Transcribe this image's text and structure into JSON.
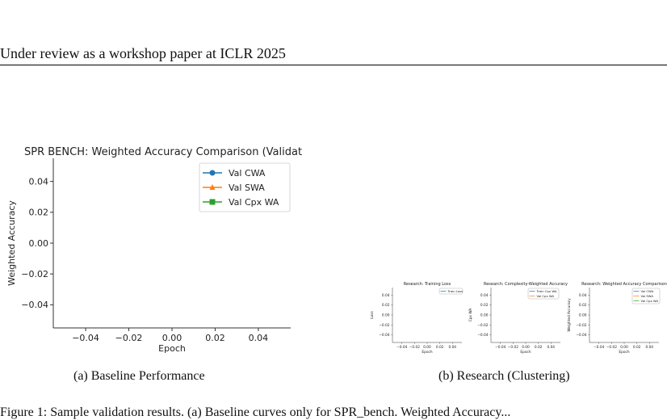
{
  "header": {
    "text": "Under review as a workshop paper at ICLR 2025"
  },
  "captions": {
    "a": "(a) Baseline Performance",
    "b": "(b) Research (Clustering)",
    "figure": "Figure 1: Sample validation results. (a) Baseline curves only for SPR_bench. Weighted Accuracy..."
  },
  "chart_data": [
    {
      "type": "line",
      "title": "SPR BENCH: Weighted Accuracy Comparison (Validat",
      "xlabel": "Epoch",
      "ylabel": "Weighted Accuracy",
      "xlim": [
        -0.055,
        0.055
      ],
      "ylim": [
        -0.055,
        0.055
      ],
      "xticks": [
        "−0.04",
        "−0.02",
        "0.00",
        "0.02",
        "0.04"
      ],
      "yticks": [
        "0.04",
        "0.02",
        "0.00",
        "−0.02",
        "−0.04"
      ],
      "legend_position": "upper right",
      "series": [
        {
          "name": "Val CWA",
          "values": [],
          "color": "#1f77b4",
          "marker": "circle"
        },
        {
          "name": "Val SWA",
          "values": [],
          "color": "#ff7f0e",
          "marker": "triangle"
        },
        {
          "name": "Val Cpx WA",
          "values": [],
          "color": "#2ca02c",
          "marker": "square"
        }
      ]
    },
    {
      "type": "line",
      "title": "Research: Training Loss",
      "xlabel": "Epoch",
      "ylabel": "Loss",
      "xticks": [
        "−0.04",
        "−0.02",
        "0.00",
        "0.02",
        "0.04"
      ],
      "yticks": [
        "0.04",
        "0.02",
        "0.00",
        "−0.02",
        "−0.04"
      ],
      "series": [
        {
          "name": "Train Loss",
          "values": [],
          "color": "#1f77b4"
        }
      ]
    },
    {
      "type": "line",
      "title": "Research: Complexity-Weighted Accuracy",
      "xlabel": "Epoch",
      "ylabel": "Cpx WA",
      "xticks": [
        "−0.04",
        "−0.02",
        "0.00",
        "0.02",
        "0.04"
      ],
      "yticks": [
        "0.04",
        "0.02",
        "0.00",
        "−0.02",
        "−0.04"
      ],
      "series": [
        {
          "name": "Train Cpx WA",
          "values": [],
          "color": "#1f77b4"
        },
        {
          "name": "Val Cpx WA",
          "values": [],
          "color": "#ff7f0e"
        }
      ]
    },
    {
      "type": "line",
      "title": "Research: Weighted Accuracy Comparison",
      "xlabel": "Epoch",
      "ylabel": "Weighted Accuracy",
      "xticks": [
        "−0.04",
        "−0.02",
        "0.00",
        "0.02",
        "0.04"
      ],
      "yticks": [
        "0.04",
        "0.02",
        "0.00",
        "−0.02",
        "−0.04"
      ],
      "series": [
        {
          "name": "Val CWA",
          "values": [],
          "color": "#1f77b4"
        },
        {
          "name": "Val SWA",
          "values": [],
          "color": "#ff7f0e"
        },
        {
          "name": "Val Cpx WA",
          "values": [],
          "color": "#2ca02c"
        }
      ]
    }
  ]
}
